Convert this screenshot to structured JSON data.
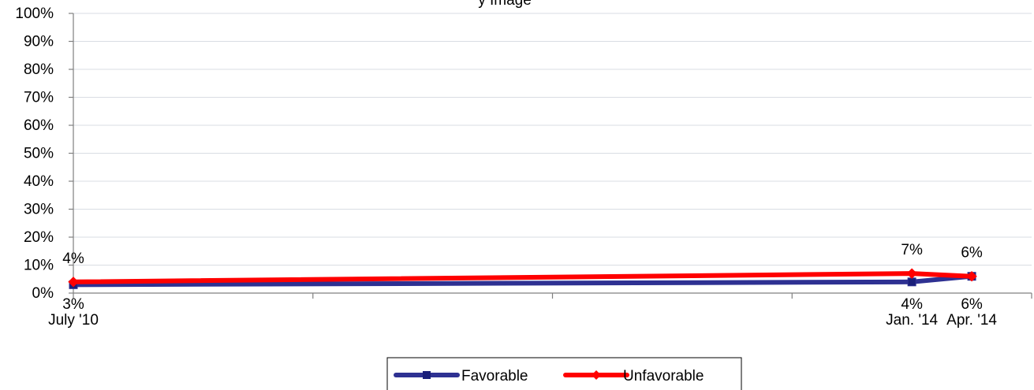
{
  "chart_data": {
    "type": "line",
    "title": "y Image",
    "categories": [
      "July '10",
      "Jan. '14",
      "Apr. '14"
    ],
    "x": [
      "2010-07",
      "2014-01",
      "2014-04"
    ],
    "x_ticks": [
      "2010-07",
      "2011-07",
      "2012-07",
      "2013-07",
      "2014-07"
    ],
    "ylim": [
      0,
      100
    ],
    "y_ticks": [
      "0%",
      "10%",
      "20%",
      "30%",
      "40%",
      "50%",
      "60%",
      "70%",
      "80%",
      "90%",
      "100%"
    ],
    "grid": true,
    "legend_position": "bottom",
    "series": [
      {
        "name": "Favorable",
        "values": [
          3,
          4,
          6
        ],
        "labels": [
          "3%",
          "4%",
          "6%"
        ],
        "color": "#2e3192",
        "marker": "square"
      },
      {
        "name": "Unfavorable",
        "values": [
          4,
          7,
          6
        ],
        "labels": [
          "4%",
          "7%",
          "6%"
        ],
        "color": "#ff0000",
        "marker": "diamond"
      }
    ]
  }
}
